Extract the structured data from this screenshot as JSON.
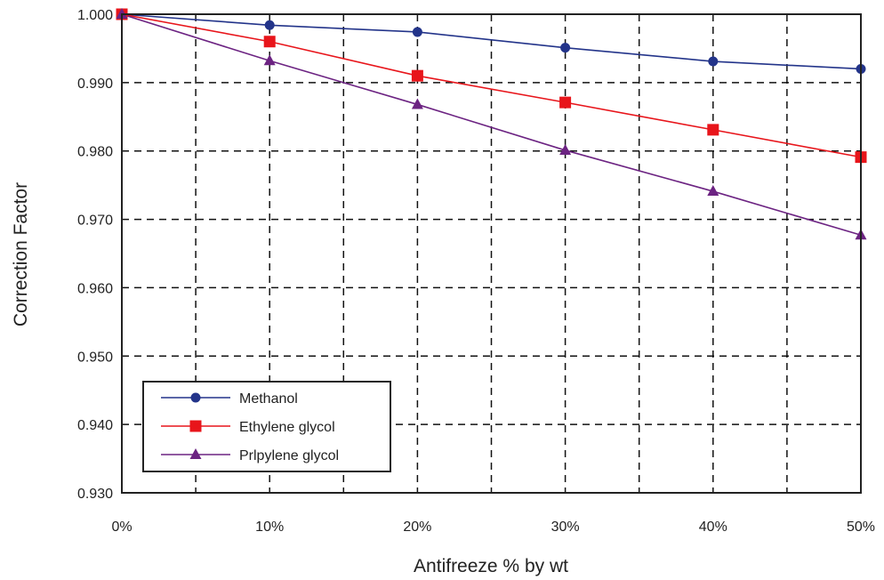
{
  "chart_data": {
    "type": "line",
    "title": "",
    "xlabel": "Antifreeze % by wt",
    "ylabel": "Correction Factor",
    "x": [
      0,
      10,
      20,
      30,
      40,
      50
    ],
    "x_tick_labels": [
      "0%",
      "10%",
      "20%",
      "30%",
      "40%",
      "50%"
    ],
    "xlim": [
      0,
      50
    ],
    "ylim": [
      0.93,
      1.0
    ],
    "y_ticks": [
      0.93,
      0.94,
      0.95,
      0.96,
      0.97,
      0.98,
      0.99,
      1.0
    ],
    "y_tick_labels": [
      "0.930",
      "0.940",
      "0.950",
      "0.960",
      "0.970",
      "0.980",
      "0.990",
      "1.000"
    ],
    "grid": "dashed",
    "legend_position": "bottom-left",
    "series": [
      {
        "name": "Methanol",
        "color": "#23348a",
        "marker": "circle",
        "values": [
          1.0,
          0.9984,
          0.9974,
          0.9951,
          0.9931,
          0.992
        ]
      },
      {
        "name": "Ethylene glycol",
        "color": "#e8151b",
        "marker": "square",
        "values": [
          1.0,
          0.996,
          0.991,
          0.9871,
          0.9831,
          0.9791
        ]
      },
      {
        "name": "Prlpylene glycol",
        "color": "#6c2382",
        "marker": "triangle",
        "values": [
          1.0,
          0.9932,
          0.9868,
          0.9801,
          0.9741,
          0.9677
        ]
      }
    ]
  }
}
